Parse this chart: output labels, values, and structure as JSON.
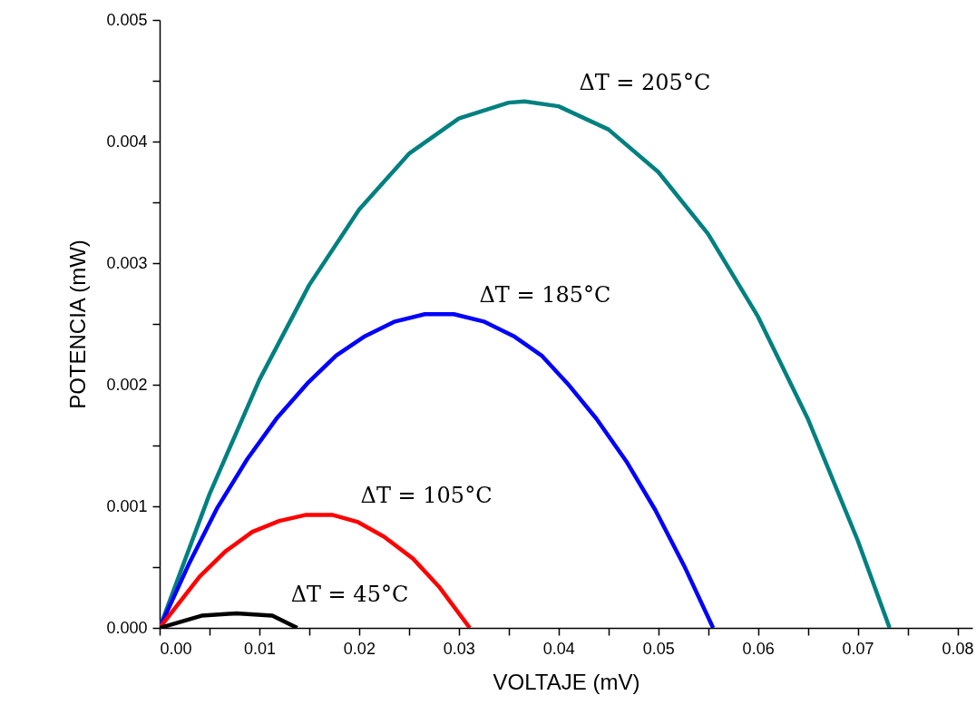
{
  "chart_data": {
    "type": "line",
    "xlabel": "VOLTAJE (mV)",
    "ylabel": "POTENCIA (mW)",
    "grid": false,
    "xlim": [
      0,
      0.0815
    ],
    "ylim": [
      0,
      0.005
    ],
    "xticks": [
      {
        "value": 0,
        "label": "0.00"
      },
      {
        "value": 0.005,
        "label": null
      },
      {
        "value": 0.01,
        "label": "0.01"
      },
      {
        "value": 0.015,
        "label": null
      },
      {
        "value": 0.02,
        "label": "0.02"
      },
      {
        "value": 0.025,
        "label": null
      },
      {
        "value": 0.03,
        "label": "0.03"
      },
      {
        "value": 0.035,
        "label": null
      },
      {
        "value": 0.04,
        "label": "0.04"
      },
      {
        "value": 0.045,
        "label": null
      },
      {
        "value": 0.05,
        "label": "0.05"
      },
      {
        "value": 0.055,
        "label": null
      },
      {
        "value": 0.06,
        "label": "0.06"
      },
      {
        "value": 0.065,
        "label": null
      },
      {
        "value": 0.07,
        "label": "0.07"
      },
      {
        "value": 0.075,
        "label": null
      },
      {
        "value": 0.08,
        "label": "0.08"
      }
    ],
    "yticks": [
      {
        "value": 0,
        "label": "0.000"
      },
      {
        "value": 0.0005,
        "label": null
      },
      {
        "value": 0.001,
        "label": "0.001"
      },
      {
        "value": 0.0015,
        "label": null
      },
      {
        "value": 0.002,
        "label": "0.002"
      },
      {
        "value": 0.0025,
        "label": null
      },
      {
        "value": 0.003,
        "label": "0.003"
      },
      {
        "value": 0.0035,
        "label": null
      },
      {
        "value": 0.004,
        "label": "0.004"
      },
      {
        "value": 0.0045,
        "label": null
      },
      {
        "value": 0.005,
        "label": "0.005"
      }
    ],
    "series": [
      {
        "name": "ΔT = 205°C",
        "color": "#008080",
        "x": [
          0,
          0.005,
          0.01,
          0.015,
          0.02,
          0.025,
          0.03,
          0.035,
          0.0366,
          0.04,
          0.045,
          0.05,
          0.055,
          0.06,
          0.065,
          0.07,
          0.0732
        ],
        "values": [
          0,
          0.0011,
          0.00204,
          0.00282,
          0.00344,
          0.0039,
          0.00419,
          0.00432,
          0.00433,
          0.00429,
          0.0041,
          0.00375,
          0.00324,
          0.00256,
          0.00172,
          0.00072,
          0
        ]
      },
      {
        "name": "ΔT = 185°C",
        "color": "#0000ff",
        "x": [
          0,
          0.0029,
          0.0058,
          0.0088,
          0.0118,
          0.0148,
          0.0177,
          0.0206,
          0.0236,
          0.0266,
          0.0295,
          0.0325,
          0.0355,
          0.0383,
          0.0409,
          0.0438,
          0.0468,
          0.0497,
          0.0526,
          0.0555
        ],
        "values": [
          0,
          0.00052,
          0.00099,
          0.00139,
          0.00173,
          0.00201,
          0.00224,
          0.0024,
          0.00252,
          0.00258,
          0.00258,
          0.00252,
          0.0024,
          0.00224,
          0.00201,
          0.00172,
          0.00137,
          0.00097,
          0.00051,
          0
        ]
      },
      {
        "name": "ΔT = 105°C",
        "color": "#ff0000",
        "x": [
          0,
          0.004,
          0.0066,
          0.0093,
          0.012,
          0.0147,
          0.0173,
          0.0199,
          0.0225,
          0.0254,
          0.028,
          0.0311
        ],
        "values": [
          0,
          0.00042,
          0.00063,
          0.00079,
          0.00088,
          0.00093,
          0.00093,
          0.00087,
          0.00075,
          0.00057,
          0.00034,
          0
        ]
      },
      {
        "name": "ΔT = 45°C",
        "color": "#000000",
        "x": [
          0,
          0.0042,
          0.0077,
          0.0113,
          0.0138
        ],
        "values": [
          0,
          0.0001,
          0.00012,
          0.0001,
          0
        ]
      }
    ]
  }
}
